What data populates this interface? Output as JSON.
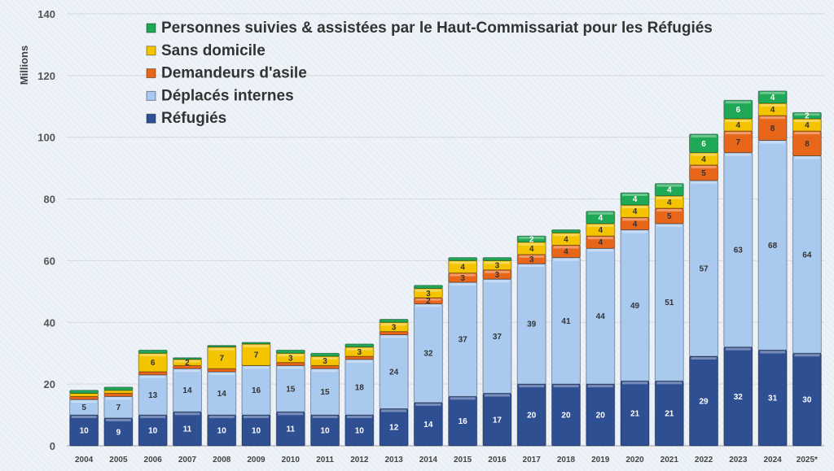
{
  "chart_data": {
    "type": "bar",
    "stacked": true,
    "title": "",
    "xlabel": "",
    "ylabel": "Millions",
    "ylim": [
      0,
      140
    ],
    "yticks": [
      0,
      20,
      40,
      60,
      80,
      100,
      120,
      140
    ],
    "grid": true,
    "legend_placement": "top-left",
    "categories": [
      "2004",
      "2005",
      "2006",
      "2007",
      "2008",
      "2009",
      "2010",
      "2011",
      "2012",
      "2013",
      "2014",
      "2015",
      "2016",
      "2017",
      "2018",
      "2019",
      "2020",
      "2021",
      "2022",
      "2023",
      "2024",
      "2025*"
    ],
    "series": [
      {
        "name": "Réfugiés",
        "color": "#2f4f93",
        "values": [
          10,
          9,
          10,
          11,
          10,
          10,
          11,
          10,
          10,
          12,
          14,
          16,
          17,
          20,
          20,
          20,
          21,
          21,
          29,
          32,
          31,
          30
        ]
      },
      {
        "name": "Déplacés internes",
        "color": "#a9c9ef",
        "values": [
          5,
          7,
          13,
          14,
          14,
          16,
          15,
          15,
          18,
          24,
          32,
          37,
          37,
          39,
          41,
          44,
          49,
          51,
          57,
          63,
          68,
          64
        ]
      },
      {
        "name": "Demandeurs d'asile",
        "color": "#e8661a",
        "values": [
          1,
          1,
          1,
          1,
          1,
          0,
          1,
          1,
          1,
          1,
          2,
          3,
          3,
          3,
          4,
          4,
          4,
          5,
          5,
          7,
          8,
          8
        ]
      },
      {
        "name": "Sans domicile",
        "color": "#f5c400",
        "values": [
          1,
          1,
          6,
          2,
          7,
          7,
          3,
          3,
          3,
          3,
          3,
          4,
          3,
          4,
          4,
          4,
          4,
          4,
          4,
          4,
          4,
          4
        ]
      },
      {
        "name": "Personnes suivies & assistées par le Haut-Commissariat pour les Réfugiés",
        "color": "#1fa855",
        "values": [
          1,
          1,
          1,
          0,
          0,
          0,
          1,
          1,
          1,
          1,
          1,
          1,
          1,
          2,
          1,
          4,
          4,
          4,
          6,
          6,
          4,
          2
        ]
      }
    ]
  }
}
